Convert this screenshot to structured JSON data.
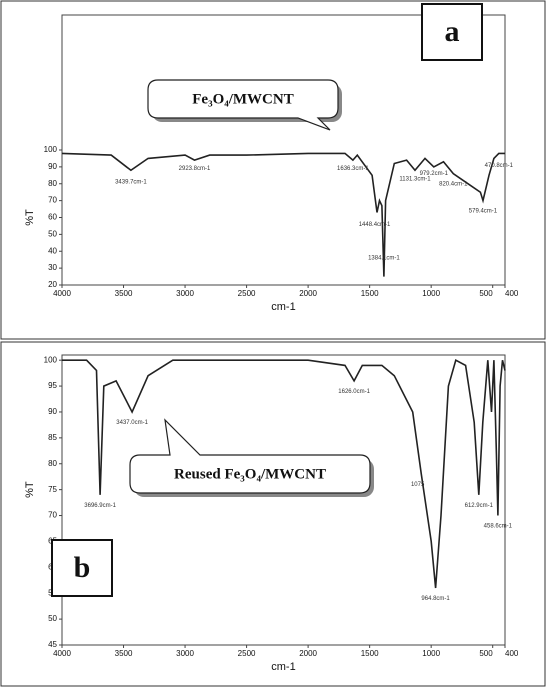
{
  "chart_data": [
    {
      "type": "line",
      "xlabel": "cm-1",
      "ylabel": "%T",
      "xlim": [
        4000,
        400
      ],
      "xticks": [
        4000,
        3500,
        3000,
        2500,
        2000,
        1500,
        1000,
        500,
        400
      ],
      "ylim": [
        20,
        180
      ],
      "yticks": [
        20,
        30,
        40,
        50,
        60,
        70,
        80,
        90,
        100
      ],
      "x": [
        4000,
        3600,
        3440,
        3300,
        3000,
        2923,
        2800,
        2500,
        2000,
        1700,
        1636,
        1600,
        1480,
        1440,
        1420,
        1400,
        1384,
        1370,
        1300,
        1200,
        1131,
        1050,
        979,
        900,
        820,
        700,
        600,
        579,
        530,
        490,
        450,
        400
      ],
      "series": [
        {
          "color": "#222",
          "values": [
            98,
            97,
            88,
            95,
            97,
            94,
            97,
            97,
            98,
            98,
            94,
            97,
            85,
            63,
            70,
            67,
            25,
            70,
            92,
            94,
            88,
            95,
            90,
            93,
            86,
            80,
            75,
            70,
            85,
            95,
            98,
            98
          ]
        }
      ],
      "annotations": [
        {
          "text": "3439.7cm-1",
          "x": 3440,
          "y": 81
        },
        {
          "text": "2923.8cm-1",
          "x": 2923,
          "y": 89
        },
        {
          "text": "1636.3cm-1",
          "x": 1636,
          "y": 89
        },
        {
          "text": "1448.4cm-1",
          "x": 1460,
          "y": 56
        },
        {
          "text": "1384.1cm-1",
          "x": 1384,
          "y": 36
        },
        {
          "text": "1131.3cm-1",
          "x": 1131,
          "y": 83
        },
        {
          "text": "979.2cm-1",
          "x": 979,
          "y": 86
        },
        {
          "text": "820.4cm-1",
          "x": 820,
          "y": 80
        },
        {
          "text": "579.4cm-1",
          "x": 579,
          "y": 64
        },
        {
          "text": "470.8cm-1",
          "x": 450,
          "y": 91
        }
      ],
      "callout": "Fe₃O₄/MWCNT",
      "panel_label": "a"
    },
    {
      "type": "line",
      "xlabel": "cm-1",
      "ylabel": "%T",
      "xlim": [
        4000,
        400
      ],
      "xticks": [
        4000,
        3500,
        3000,
        2500,
        2000,
        1500,
        1000,
        500,
        400
      ],
      "ylim": [
        45,
        101
      ],
      "yticks": [
        45,
        50,
        55,
        60,
        65,
        70,
        75,
        80,
        85,
        90,
        95,
        100
      ],
      "x": [
        4000,
        3800,
        3720,
        3690,
        3660,
        3560,
        3430,
        3300,
        3100,
        2000,
        1700,
        1626,
        1560,
        1400,
        1300,
        1150,
        1080,
        1000,
        964,
        920,
        860,
        800,
        720,
        650,
        613,
        580,
        540,
        510,
        490,
        470,
        458,
        440,
        420,
        400
      ],
      "series": [
        {
          "color": "#222",
          "values": [
            100,
            100,
            98,
            74,
            95,
            96,
            90,
            97,
            100,
            100,
            99,
            96,
            99,
            99,
            97,
            90,
            78,
            65,
            56,
            70,
            95,
            100,
            99,
            88,
            74,
            88,
            100,
            90,
            100,
            82,
            70,
            95,
            100,
            98
          ]
        }
      ],
      "annotations": [
        {
          "text": "3696.9cm-1",
          "x": 3690,
          "y": 72
        },
        {
          "text": "3437.0cm-1",
          "x": 3430,
          "y": 88
        },
        {
          "text": "1626.0cm-1",
          "x": 1626,
          "y": 94
        },
        {
          "text": "1075",
          "x": 1110,
          "y": 76
        },
        {
          "text": "964.8cm-1",
          "x": 964,
          "y": 54
        },
        {
          "text": "612.9cm-1",
          "x": 613,
          "y": 72
        },
        {
          "text": "458.6cm-1",
          "x": 458,
          "y": 68
        }
      ],
      "callout": "Reused Fe₃O₄/MWCNT",
      "panel_label": "b"
    }
  ]
}
